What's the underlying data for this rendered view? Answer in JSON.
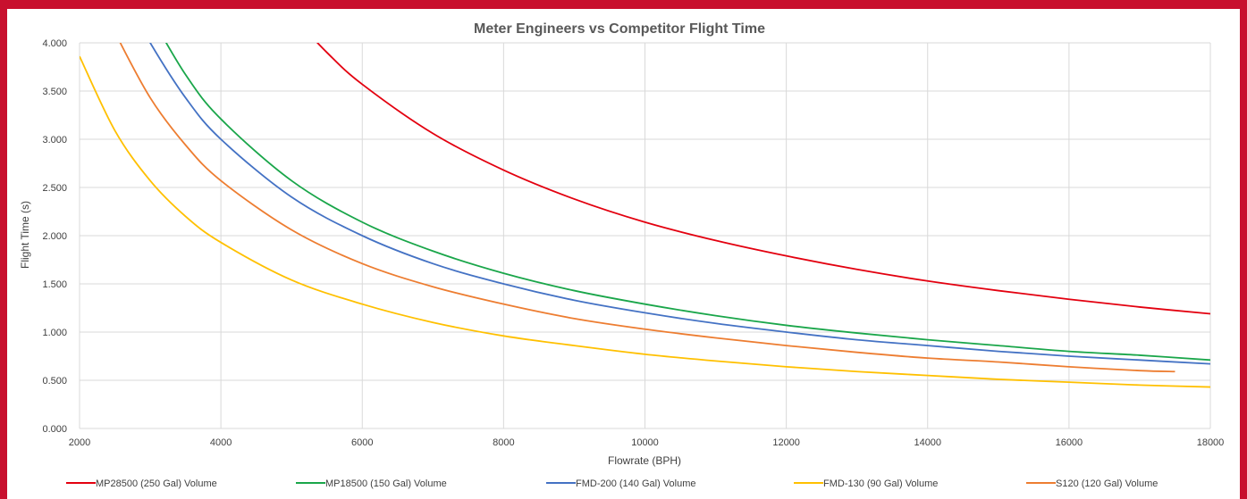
{
  "chart_data": {
    "type": "line",
    "title": "Meter Engineers vs Competitor Flight Time",
    "xlabel": "Flowrate (BPH)",
    "ylabel": "Flight Time (s)",
    "xlim": [
      2000,
      18000
    ],
    "ylim": [
      0,
      4
    ],
    "x_ticks": [
      "2000",
      "4000",
      "6000",
      "8000",
      "10000",
      "12000",
      "14000",
      "16000",
      "18000"
    ],
    "y_ticks": [
      "0.000",
      "0.500",
      "1.000",
      "1.500",
      "2.000",
      "2.500",
      "3.000",
      "3.500",
      "4.000"
    ],
    "grid": true,
    "legend_position": "bottom",
    "series": [
      {
        "name": "MP28500 (250 Gal) Volume",
        "color": "#e3000f",
        "x": [
          5000,
          5500,
          6000,
          7000,
          8000,
          9000,
          10000,
          11000,
          12000,
          13000,
          14000,
          15000,
          16000,
          17000,
          18000
        ],
        "y": [
          4.29,
          3.9,
          3.57,
          3.06,
          2.68,
          2.38,
          2.14,
          1.95,
          1.79,
          1.65,
          1.53,
          1.43,
          1.34,
          1.26,
          1.19
        ]
      },
      {
        "name": "MP18500 (150 Gal) Volume",
        "color": "#1aa64a",
        "x": [
          3000,
          3500,
          4000,
          5000,
          6000,
          7000,
          8000,
          9000,
          10000,
          11000,
          12000,
          13000,
          14000,
          15000,
          16000,
          17000,
          18000
        ],
        "y": [
          4.29,
          3.67,
          3.21,
          2.57,
          2.14,
          1.84,
          1.61,
          1.43,
          1.29,
          1.17,
          1.07,
          0.99,
          0.92,
          0.86,
          0.8,
          0.76,
          0.71
        ]
      },
      {
        "name": "FMD-200 (140 Gal) Volume",
        "color": "#4472c4",
        "x": [
          2800,
          3000,
          3500,
          4000,
          5000,
          6000,
          7000,
          8000,
          9000,
          10000,
          11000,
          12000,
          13000,
          14000,
          15000,
          16000,
          17000,
          18000
        ],
        "y": [
          4.29,
          4.0,
          3.43,
          3.0,
          2.4,
          2.0,
          1.71,
          1.5,
          1.33,
          1.2,
          1.09,
          1.0,
          0.92,
          0.86,
          0.8,
          0.75,
          0.71,
          0.67
        ]
      },
      {
        "name": "FMD-130 (90 Gal) Volume",
        "color": "#ffc000",
        "x": [
          2000,
          2500,
          3000,
          3500,
          4000,
          5000,
          6000,
          7000,
          8000,
          9000,
          10000,
          11000,
          12000,
          13000,
          14000,
          15000,
          16000,
          17000,
          18000
        ],
        "y": [
          3.86,
          3.09,
          2.57,
          2.2,
          1.93,
          1.54,
          1.29,
          1.1,
          0.96,
          0.86,
          0.77,
          0.7,
          0.64,
          0.59,
          0.55,
          0.51,
          0.48,
          0.45,
          0.43
        ]
      },
      {
        "name": "S120 (120 Gal) Volume",
        "color": "#ed7d31",
        "x": [
          2400,
          2500,
          3000,
          3500,
          4000,
          5000,
          6000,
          7000,
          8000,
          9000,
          10000,
          11000,
          12000,
          13000,
          14000,
          15000,
          16000,
          17000,
          17500
        ],
        "y": [
          4.29,
          4.11,
          3.43,
          2.94,
          2.57,
          2.06,
          1.71,
          1.47,
          1.29,
          1.14,
          1.03,
          0.94,
          0.86,
          0.79,
          0.73,
          0.69,
          0.64,
          0.6,
          0.59
        ]
      }
    ]
  }
}
